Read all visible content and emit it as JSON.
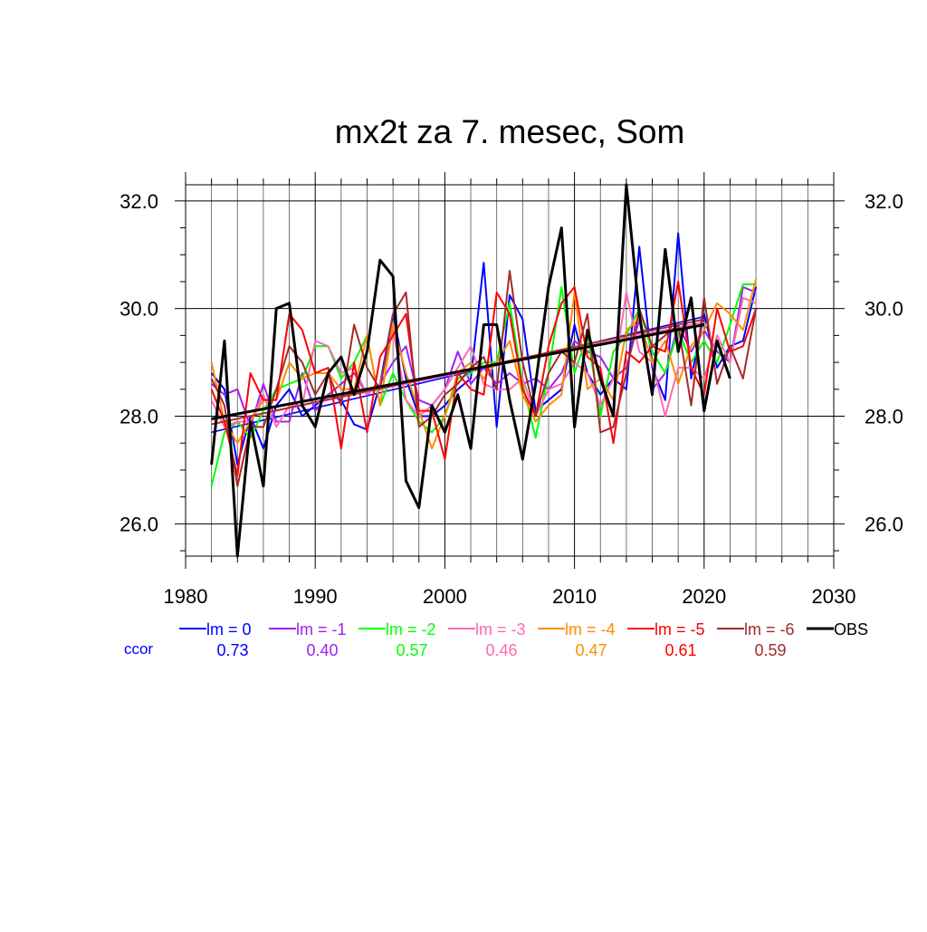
{
  "chart_data": {
    "type": "line",
    "title": "mx2t za 7. mesec, Som",
    "xlabel": "",
    "ylabel": "",
    "xlim": [
      1980,
      2030
    ],
    "ylim": [
      25.4,
      32.3
    ],
    "x_ticks": [
      "1980",
      "1990",
      "2000",
      "2010",
      "2020",
      "2030"
    ],
    "y_ticks": [
      "26.0",
      "28.0",
      "30.0",
      "32.0"
    ],
    "y_tick_values": [
      26,
      28,
      30,
      32
    ],
    "grid": true,
    "legend_position": "bottom",
    "ccor_label": "ccor",
    "series": [
      {
        "name": "lm = 0",
        "color": "#0000ff",
        "ccor": "0.73",
        "lead": 0,
        "values": [
          28.8,
          28.5,
          27.1,
          28.0,
          27.4,
          28.2,
          28.5,
          28.0,
          28.2,
          28.4,
          28.3,
          27.85,
          27.75,
          28.6,
          29.9,
          28.7,
          28.0,
          28.0,
          28.2,
          28.5,
          28.7,
          30.85,
          27.8,
          30.25,
          29.8,
          28.1,
          28.3,
          28.5,
          29.7,
          28.8,
          28.4,
          28.7,
          28.5,
          31.15,
          28.9,
          28.3,
          31.4,
          28.7,
          29.9,
          28.9,
          29.3,
          29.4,
          30.4
        ],
        "trend": [
          27.7,
          29.85
        ]
      },
      {
        "name": "lm = -1",
        "color": "#a020f0",
        "ccor": "0.40",
        "lead": 1,
        "values": [
          28.6,
          28.4,
          28.5,
          27.8,
          28.6,
          27.9,
          27.9,
          28.8,
          28.1,
          28.4,
          28.6,
          28.8,
          28.4,
          28.6,
          29.0,
          29.3,
          28.3,
          28.2,
          28.5,
          29.2,
          28.6,
          28.9,
          28.6,
          28.8,
          28.6,
          28.7,
          28.5,
          28.8,
          29.4,
          29.2,
          29.1,
          28.7,
          28.9,
          29.8,
          28.5,
          28.8,
          29.7,
          29.2,
          29.6,
          29.2,
          29.0,
          30.4,
          30.3
        ],
        "trend": [
          27.85,
          29.75
        ]
      },
      {
        "name": "lm = -2",
        "color": "#00ff00",
        "ccor": "0.57",
        "lead": 2,
        "values": [
          26.7,
          27.7,
          27.9,
          27.6,
          28.1,
          28.5,
          28.6,
          28.7,
          29.3,
          29.3,
          28.7,
          29.0,
          29.5,
          28.2,
          28.8,
          28.3,
          27.9,
          27.7,
          28.0,
          28.7,
          28.8,
          29.0,
          29.0,
          30.1,
          28.6,
          27.6,
          28.8,
          30.4,
          28.8,
          29.5,
          28.0,
          29.2,
          29.5,
          30.0,
          29.2,
          28.8,
          29.6,
          29.0,
          29.4,
          29.0,
          29.7,
          30.45,
          30.45
        ],
        "trend": [
          27.85,
          29.8
        ]
      },
      {
        "name": "lm = -3",
        "color": "#ff69b4",
        "ccor": "0.46",
        "lead": 3,
        "values": [
          28.3,
          27.8,
          27.9,
          27.9,
          28.4,
          27.8,
          28.2,
          28.2,
          29.4,
          29.3,
          28.8,
          28.9,
          28.4,
          28.6,
          29.6,
          28.3,
          28.0,
          28.2,
          28.5,
          28.9,
          29.3,
          28.6,
          28.5,
          28.5,
          28.7,
          28.0,
          28.5,
          28.6,
          29.0,
          28.8,
          28.2,
          28.7,
          30.3,
          29.2,
          29.0,
          28.0,
          28.9,
          28.9,
          28.7,
          29.5,
          29.0,
          30.2,
          30.1
        ],
        "trend": [
          27.85,
          29.75
        ]
      },
      {
        "name": "lm = -4",
        "color": "#ff8c00",
        "ccor": "0.47",
        "lead": 4,
        "values": [
          29.0,
          27.9,
          27.5,
          27.9,
          28.3,
          28.3,
          29.0,
          28.7,
          28.8,
          28.8,
          28.5,
          28.5,
          29.5,
          28.2,
          29.7,
          28.8,
          28.1,
          27.4,
          28.0,
          28.8,
          29.0,
          28.7,
          29.0,
          29.4,
          28.4,
          27.9,
          28.2,
          28.4,
          30.3,
          28.5,
          28.7,
          28.3,
          29.6,
          29.8,
          29.0,
          29.4,
          28.6,
          29.3,
          29.6,
          30.1,
          29.9,
          29.6,
          30.55
        ],
        "trend": [
          27.85,
          29.8
        ]
      },
      {
        "name": "lm = -5",
        "color": "#ff0000",
        "ccor": "0.61",
        "lead": 5,
        "values": [
          28.5,
          27.9,
          26.9,
          28.8,
          28.3,
          28.3,
          29.9,
          29.6,
          28.8,
          28.9,
          27.4,
          29.0,
          27.7,
          29.1,
          29.5,
          29.9,
          28.1,
          28.1,
          27.2,
          28.8,
          28.5,
          28.4,
          30.3,
          29.9,
          28.5,
          28.0,
          29.3,
          30.1,
          30.4,
          29.1,
          28.9,
          27.5,
          29.2,
          29.0,
          29.3,
          29.2,
          30.5,
          28.9,
          28.4,
          30.0,
          29.2,
          29.3,
          30.0
        ],
        "trend": [
          27.85,
          29.8
        ]
      },
      {
        "name": "lm = -6",
        "color": "#a52a2a",
        "ccor": "0.59",
        "lead": 6,
        "values": [
          28.7,
          28.2,
          26.7,
          27.8,
          27.8,
          28.5,
          29.3,
          29.0,
          28.4,
          28.8,
          28.2,
          29.7,
          28.9,
          28.5,
          29.9,
          30.3,
          27.8,
          28.0,
          28.4,
          28.6,
          28.9,
          29.1,
          28.5,
          30.7,
          29.0,
          28.0,
          28.8,
          29.2,
          29.0,
          29.9,
          27.7,
          27.8,
          28.8,
          30.0,
          29.3,
          29.5,
          29.7,
          28.2,
          30.2,
          28.6,
          29.3,
          28.7,
          30.0
        ],
        "trend": [
          27.85,
          29.8
        ]
      },
      {
        "name": "OBS",
        "color": "#000000",
        "ccor": "",
        "lead": 0,
        "values": [
          27.1,
          29.4,
          25.4,
          27.9,
          26.7,
          30.0,
          30.1,
          28.2,
          27.8,
          28.8,
          29.1,
          28.4,
          29.2,
          30.9,
          30.6,
          26.8,
          26.3,
          28.2,
          27.7,
          28.4,
          27.4,
          29.7,
          29.7,
          28.3,
          27.2,
          28.6,
          30.4,
          31.5,
          27.8,
          29.6,
          28.7,
          28.0,
          32.3,
          29.9,
          28.4,
          31.1,
          29.2,
          30.2,
          28.1,
          29.4,
          28.7
        ],
        "trend": [
          27.95,
          29.7
        ]
      }
    ]
  }
}
